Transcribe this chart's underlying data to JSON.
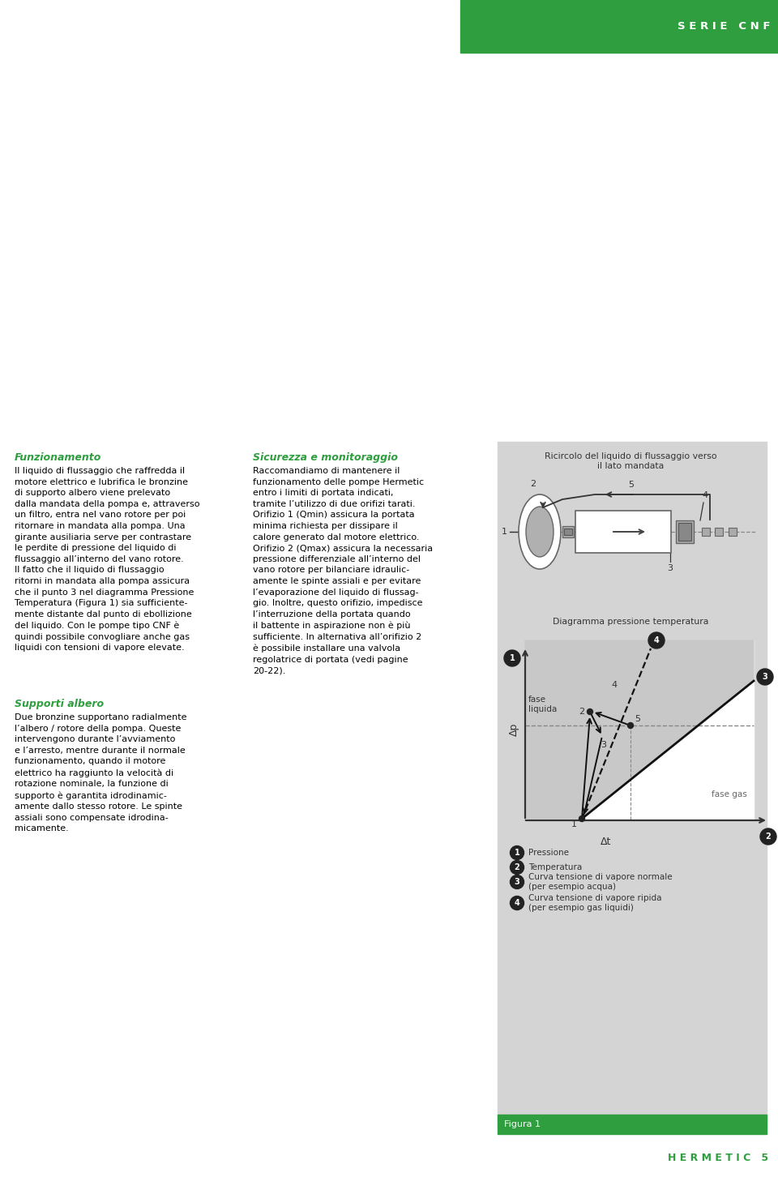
{
  "bg_color": "#e8e8e8",
  "white": "#ffffff",
  "black": "#000000",
  "green_header": "#2e9e3e",
  "gray_panel": "#d4d4d4",
  "title_text": "S E R I E   C N F",
  "fig1_title": "Ricircolo del liquido di flussaggio verso\nil lato mandata",
  "fig2_title": "Diagramma pressione temperatura",
  "fig_caption": "Figura 1",
  "legend": [
    {
      "num": "1",
      "text": "Pressione"
    },
    {
      "num": "2",
      "text": "Temperatura"
    },
    {
      "num": "3",
      "text": "Curva tensione di vapore normale\n(per esempio acqua)"
    },
    {
      "num": "4",
      "text": "Curva tensione di vapore ripida\n(per esempio gas liquidi)"
    }
  ],
  "left_col_title1": "Funzionamento",
  "left_col_body1": "Il liquido di flussaggio che raffredda il\nmotore elettrico e lubrifica le bronzine\ndi supporto albero viene prelevato\ndalla mandata della pompa e, attraverso\nun filtro, entra nel vano rotore per poi\nritornare in mandata alla pompa. Una\ngirante ausiliaria serve per contrastare\nle perdite di pressione del liquido di\nflussaggio all’interno del vano rotore.\nIl fatto che il liquido di flussaggio\nritorni in mandata alla pompa assicura\nche il punto 3 nel diagramma Pressione\nTemperatura (Figura 1) sia sufficiente-\nmente distante dal punto di ebollizione\ndel liquido. Con le pompe tipo CNF è\nquindi possibile convogliare anche gas\nliquidi con tensioni di vapore elevate.",
  "left_col_title2": "Supporti albero",
  "left_col_body2": "Due bronzine supportano radialmente\nl’albero / rotore della pompa. Queste\nintervengono durante l’avviamento\ne l’arresto, mentre durante il normale\nfunzionamento, quando il motore\nelettrico ha raggiunto la velocità di\nrotazione nominale, la funzione di\nsupporto è garantita idrodinamic-\namente dallo stesso rotore. Le spinte\nassiali sono compensate idrodina-\nmicamente.",
  "right_col_title1": "Sicurezza e monitoraggio",
  "right_col_body1": "Raccomandiamo di mantenere il\nfunzionamento delle pompe Hermetic\nentro i limiti di portata indicati,\ntramite l’utilizzo di due orifizi tarati.\nOrifizio 1 (Qmin) assicura la portata\nminima richiesta per dissipare il\ncalore generato dal motore elettrico.\nOrifizio 2 (Qmax) assicura la necessaria\npressione differenziale all’interno del\nvano rotore per bilanciare idraulic-\namente le spinte assiali e per evitare\nl’evaporazione del liquido di flussag-\ngio. Inoltre, questo orifizio, impedisce\nl’interruzione della portata quando\nil battente in aspirazione non è più\nsufficiente. In alternativa all’orifizio 2\nè possibile installare una valvola\nregolatrice di portata (vedi pagine\n20-22).",
  "hermetic_footer": "H E R M E T I C   5"
}
